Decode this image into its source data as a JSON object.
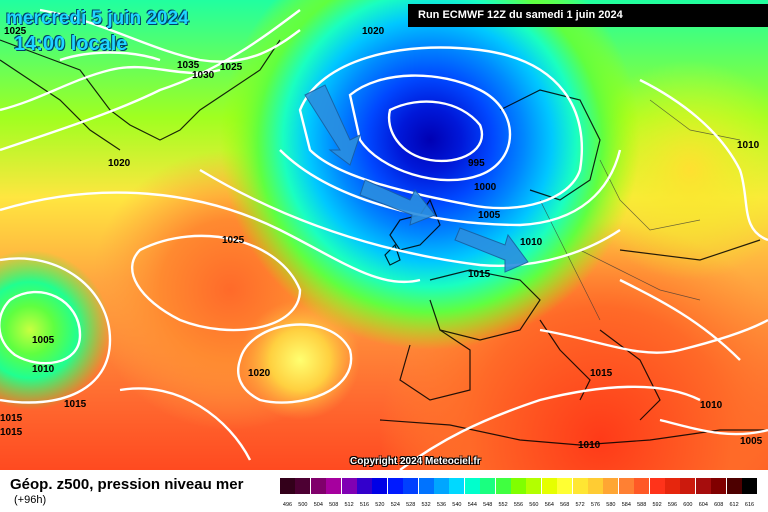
{
  "title": {
    "date": "mercredi 5 juin 2024",
    "time": "14:00 locale",
    "run": "Run ECMWF 12Z du samedi 1 juin 2024"
  },
  "footer": {
    "parameter": "Géop. z500, pression niveau mer",
    "lead": "(+96h)",
    "copyright": "Copyright 2024 Meteociel.fr"
  },
  "legend": {
    "ticks": [
      "496",
      "500",
      "504",
      "508",
      "512",
      "516",
      "520",
      "524",
      "528",
      "532",
      "536",
      "540",
      "544",
      "548",
      "552",
      "556",
      "560",
      "564",
      "568",
      "572",
      "576",
      "580",
      "584",
      "588",
      "592",
      "596",
      "600",
      "604",
      "608",
      "612",
      "616"
    ],
    "colors": [
      "#33001a",
      "#4d0033",
      "#80006b",
      "#a6009e",
      "#8000b3",
      "#3300cc",
      "#0000e6",
      "#001aff",
      "#0040ff",
      "#0073ff",
      "#00a6ff",
      "#00d9ff",
      "#00ffcc",
      "#1aff80",
      "#40ff40",
      "#80ff00",
      "#b3ff00",
      "#e6ff00",
      "#ffff33",
      "#ffe633",
      "#ffcc33",
      "#ffa633",
      "#ff8033",
      "#ff5926",
      "#ff331a",
      "#e6260d",
      "#cc1a0d",
      "#a60d0d",
      "#800000",
      "#4d0000",
      "#000000"
    ]
  },
  "isobar_labels": [
    {
      "text": "1025",
      "pos": "greenland-west"
    },
    {
      "text": "1020",
      "pos": "north-atlantic-top"
    },
    {
      "text": "1035",
      "pos": "greenland-center"
    },
    {
      "text": "1030",
      "pos": "greenland-center-2"
    },
    {
      "text": "1025",
      "pos": "greenland-east"
    },
    {
      "text": "1020",
      "pos": "greenland-south"
    },
    {
      "text": "995",
      "pos": "low-center"
    },
    {
      "text": "1000",
      "pos": "low-south"
    },
    {
      "text": "1005",
      "pos": "low-south-2"
    },
    {
      "text": "1010",
      "pos": "north-sea"
    },
    {
      "text": "1015",
      "pos": "channel"
    },
    {
      "text": "1025",
      "pos": "atlantic-high"
    },
    {
      "text": "1005",
      "pos": "west-low"
    },
    {
      "text": "1010",
      "pos": "west-low-2"
    },
    {
      "text": "1015",
      "pos": "west-edge-1"
    },
    {
      "text": "1015",
      "pos": "west-edge-2"
    },
    {
      "text": "1015",
      "pos": "west-mid"
    },
    {
      "text": "1020",
      "pos": "azores"
    },
    {
      "text": "1010",
      "pos": "russia"
    },
    {
      "text": "1015",
      "pos": "balkans"
    },
    {
      "text": "1010",
      "pos": "turkey"
    },
    {
      "text": "1005",
      "pos": "middle-east"
    },
    {
      "text": "1010",
      "pos": "africa"
    }
  ]
}
